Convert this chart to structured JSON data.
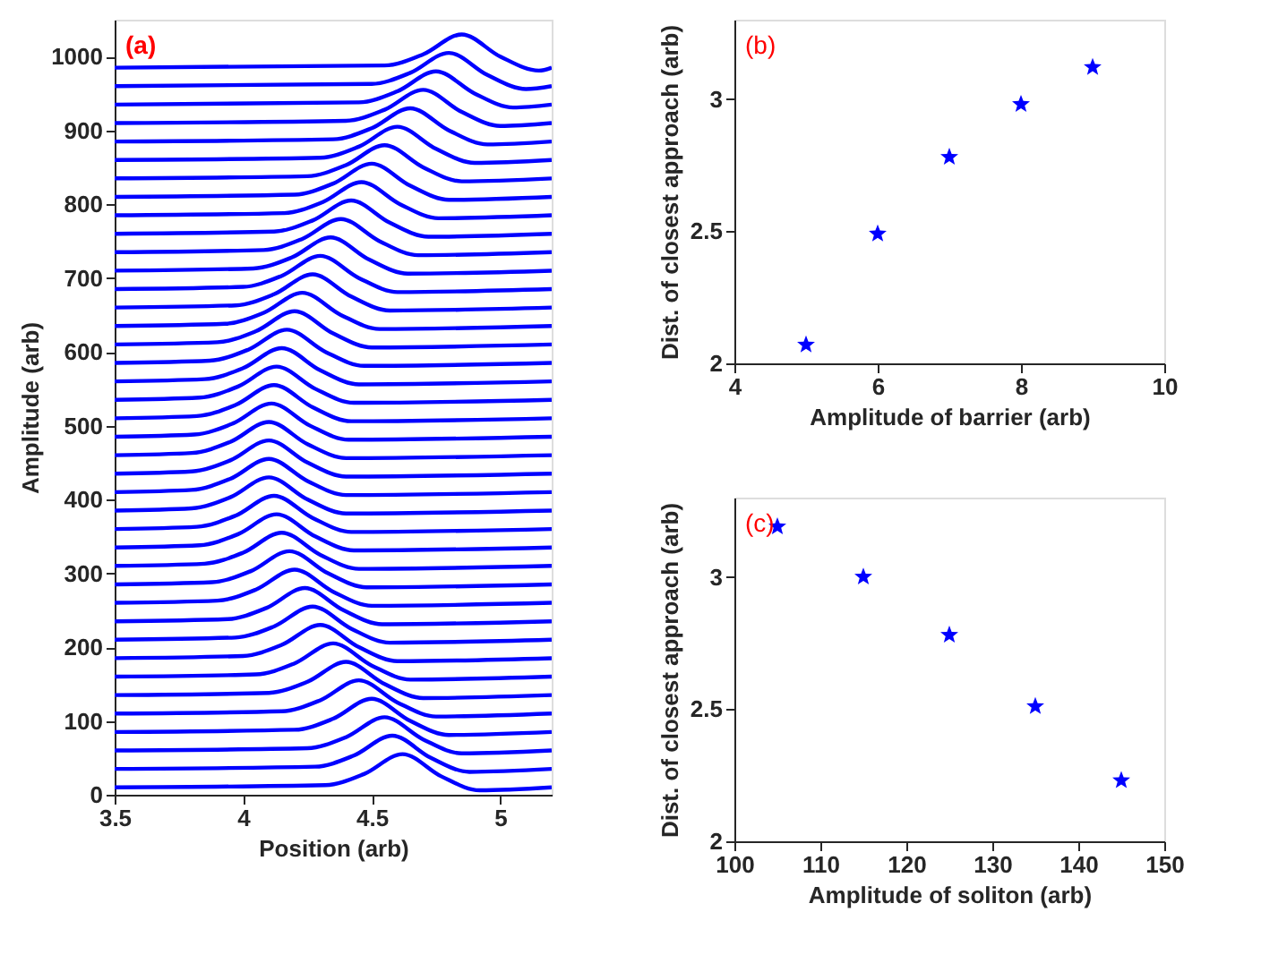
{
  "chart_data": [
    {
      "type": "line",
      "xlabel": "Position (arb)",
      "ylabel": "Amplitude (arb)",
      "annotations": [
        "(a)"
      ],
      "xlim": [
        3.5,
        5.2
      ],
      "xticks": [
        3.5,
        4,
        4.5,
        5
      ],
      "ylim": [
        0,
        1050
      ],
      "yticks": [
        0,
        100,
        200,
        300,
        400,
        500,
        600,
        700,
        800,
        900,
        1000
      ],
      "grid": false,
      "legend": false,
      "marker": "none",
      "line_style": "solid",
      "series": [
        {
          "color": "#0000ff",
          "x": [
            3.5,
            4.32,
            4.47,
            4.62,
            4.77,
            4.92,
            5.2
          ],
          "values": [
            10,
            13,
            28,
            55,
            25,
            6,
            10
          ]
        },
        {
          "color": "#0000ff",
          "x": [
            3.5,
            4.28,
            4.43,
            4.58,
            4.73,
            4.88,
            5.2
          ],
          "values": [
            35,
            38,
            53,
            80,
            50,
            31,
            35
          ]
        },
        {
          "color": "#0000ff",
          "x": [
            3.5,
            4.25,
            4.4,
            4.55,
            4.7,
            4.85,
            5.2
          ],
          "values": [
            60,
            63,
            78,
            105,
            75,
            56,
            60
          ]
        },
        {
          "color": "#0000ff",
          "x": [
            3.5,
            4.2,
            4.35,
            4.5,
            4.65,
            4.8,
            5.2
          ],
          "values": [
            85,
            88,
            103,
            130,
            100,
            81,
            85
          ]
        },
        {
          "color": "#0000ff",
          "x": [
            3.5,
            4.15,
            4.3,
            4.45,
            4.6,
            4.75,
            5.2
          ],
          "values": [
            110,
            113,
            128,
            155,
            125,
            106,
            110
          ]
        },
        {
          "color": "#0000ff",
          "x": [
            3.5,
            4.1,
            4.25,
            4.4,
            4.55,
            4.7,
            5.2
          ],
          "values": [
            135,
            138,
            153,
            180,
            150,
            131,
            135
          ]
        },
        {
          "color": "#0000ff",
          "x": [
            3.5,
            4.05,
            4.2,
            4.35,
            4.5,
            4.65,
            5.2
          ],
          "values": [
            160,
            163,
            178,
            205,
            175,
            156,
            160
          ]
        },
        {
          "color": "#0000ff",
          "x": [
            3.5,
            4.0,
            4.15,
            4.3,
            4.45,
            4.6,
            5.2
          ],
          "values": [
            185,
            188,
            203,
            230,
            200,
            181,
            185
          ]
        },
        {
          "color": "#0000ff",
          "x": [
            3.5,
            3.97,
            4.12,
            4.27,
            4.42,
            4.57,
            5.2
          ],
          "values": [
            210,
            213,
            228,
            255,
            225,
            206,
            210
          ]
        },
        {
          "color": "#0000ff",
          "x": [
            3.5,
            3.94,
            4.09,
            4.24,
            4.39,
            4.54,
            5.2
          ],
          "values": [
            235,
            238,
            253,
            280,
            250,
            231,
            235
          ]
        },
        {
          "color": "#0000ff",
          "x": [
            3.5,
            3.9,
            4.05,
            4.2,
            4.35,
            4.5,
            5.2
          ],
          "values": [
            260,
            263,
            278,
            305,
            275,
            256,
            260
          ]
        },
        {
          "color": "#0000ff",
          "x": [
            3.5,
            3.88,
            4.03,
            4.18,
            4.33,
            4.48,
            5.2
          ],
          "values": [
            285,
            288,
            303,
            330,
            300,
            281,
            285
          ]
        },
        {
          "color": "#0000ff",
          "x": [
            3.5,
            3.85,
            4.0,
            4.15,
            4.3,
            4.45,
            5.2
          ],
          "values": [
            310,
            313,
            328,
            355,
            325,
            306,
            310
          ]
        },
        {
          "color": "#0000ff",
          "x": [
            3.5,
            3.83,
            3.98,
            4.13,
            4.28,
            4.43,
            5.2
          ],
          "values": [
            335,
            338,
            353,
            380,
            350,
            331,
            335
          ]
        },
        {
          "color": "#0000ff",
          "x": [
            3.5,
            3.82,
            3.97,
            4.12,
            4.27,
            4.42,
            5.2
          ],
          "values": [
            360,
            363,
            378,
            405,
            375,
            356,
            360
          ]
        },
        {
          "color": "#0000ff",
          "x": [
            3.5,
            3.8,
            3.95,
            4.1,
            4.25,
            4.4,
            5.2
          ],
          "values": [
            385,
            388,
            403,
            430,
            400,
            381,
            385
          ]
        },
        {
          "color": "#0000ff",
          "x": [
            3.5,
            3.8,
            3.95,
            4.1,
            4.25,
            4.4,
            5.2
          ],
          "values": [
            410,
            413,
            428,
            455,
            425,
            406,
            410
          ]
        },
        {
          "color": "#0000ff",
          "x": [
            3.5,
            3.8,
            3.95,
            4.1,
            4.25,
            4.4,
            5.2
          ],
          "values": [
            435,
            438,
            453,
            480,
            450,
            431,
            435
          ]
        },
        {
          "color": "#0000ff",
          "x": [
            3.5,
            3.8,
            3.95,
            4.1,
            4.25,
            4.4,
            5.2
          ],
          "values": [
            460,
            463,
            478,
            505,
            475,
            456,
            460
          ]
        },
        {
          "color": "#0000ff",
          "x": [
            3.5,
            3.81,
            3.96,
            4.11,
            4.26,
            4.41,
            5.2
          ],
          "values": [
            485,
            488,
            503,
            530,
            500,
            481,
            485
          ]
        },
        {
          "color": "#0000ff",
          "x": [
            3.5,
            3.82,
            3.97,
            4.12,
            4.27,
            4.42,
            5.2
          ],
          "values": [
            510,
            513,
            528,
            555,
            525,
            506,
            510
          ]
        },
        {
          "color": "#0000ff",
          "x": [
            3.5,
            3.83,
            3.98,
            4.13,
            4.28,
            4.43,
            5.2
          ],
          "values": [
            535,
            538,
            553,
            580,
            550,
            531,
            535
          ]
        },
        {
          "color": "#0000ff",
          "x": [
            3.5,
            3.85,
            4.0,
            4.15,
            4.3,
            4.45,
            5.2
          ],
          "values": [
            560,
            563,
            578,
            605,
            575,
            556,
            560
          ]
        },
        {
          "color": "#0000ff",
          "x": [
            3.5,
            3.87,
            4.02,
            4.17,
            4.32,
            4.47,
            5.2
          ],
          "values": [
            585,
            588,
            603,
            630,
            600,
            581,
            585
          ]
        },
        {
          "color": "#0000ff",
          "x": [
            3.5,
            3.9,
            4.05,
            4.2,
            4.35,
            4.5,
            5.2
          ],
          "values": [
            610,
            613,
            628,
            655,
            625,
            606,
            610
          ]
        },
        {
          "color": "#0000ff",
          "x": [
            3.5,
            3.93,
            4.08,
            4.23,
            4.38,
            4.53,
            5.2
          ],
          "values": [
            635,
            638,
            653,
            680,
            650,
            631,
            635
          ]
        },
        {
          "color": "#0000ff",
          "x": [
            3.5,
            3.97,
            4.12,
            4.27,
            4.42,
            4.57,
            5.2
          ],
          "values": [
            660,
            663,
            678,
            705,
            675,
            656,
            660
          ]
        },
        {
          "color": "#0000ff",
          "x": [
            3.5,
            4.0,
            4.15,
            4.3,
            4.45,
            4.6,
            5.2
          ],
          "values": [
            685,
            688,
            703,
            730,
            700,
            681,
            685
          ]
        },
        {
          "color": "#0000ff",
          "x": [
            3.5,
            4.04,
            4.19,
            4.34,
            4.49,
            4.64,
            5.2
          ],
          "values": [
            710,
            713,
            728,
            755,
            725,
            706,
            710
          ]
        },
        {
          "color": "#0000ff",
          "x": [
            3.5,
            4.08,
            4.23,
            4.38,
            4.53,
            4.68,
            5.2
          ],
          "values": [
            735,
            738,
            753,
            780,
            750,
            731,
            735
          ]
        },
        {
          "color": "#0000ff",
          "x": [
            3.5,
            4.12,
            4.27,
            4.42,
            4.57,
            4.72,
            5.2
          ],
          "values": [
            760,
            763,
            778,
            805,
            775,
            756,
            760
          ]
        },
        {
          "color": "#0000ff",
          "x": [
            3.5,
            4.16,
            4.31,
            4.46,
            4.61,
            4.76,
            5.2
          ],
          "values": [
            785,
            788,
            803,
            830,
            800,
            781,
            785
          ]
        },
        {
          "color": "#0000ff",
          "x": [
            3.5,
            4.2,
            4.35,
            4.5,
            4.65,
            4.8,
            5.2
          ],
          "values": [
            810,
            813,
            828,
            855,
            825,
            806,
            810
          ]
        },
        {
          "color": "#0000ff",
          "x": [
            3.5,
            4.25,
            4.4,
            4.55,
            4.7,
            4.85,
            5.2
          ],
          "values": [
            835,
            838,
            853,
            880,
            850,
            831,
            835
          ]
        },
        {
          "color": "#0000ff",
          "x": [
            3.5,
            4.3,
            4.45,
            4.6,
            4.75,
            4.9,
            5.2
          ],
          "values": [
            860,
            863,
            878,
            905,
            875,
            856,
            860
          ]
        },
        {
          "color": "#0000ff",
          "x": [
            3.5,
            4.35,
            4.5,
            4.65,
            4.8,
            4.95,
            5.2
          ],
          "values": [
            885,
            888,
            903,
            930,
            900,
            881,
            885
          ]
        },
        {
          "color": "#0000ff",
          "x": [
            3.5,
            4.4,
            4.55,
            4.7,
            4.85,
            5.0,
            5.2
          ],
          "values": [
            910,
            913,
            928,
            955,
            925,
            906,
            910
          ]
        },
        {
          "color": "#0000ff",
          "x": [
            3.5,
            4.45,
            4.6,
            4.75,
            4.9,
            5.05,
            5.2
          ],
          "values": [
            935,
            938,
            953,
            980,
            950,
            931,
            935
          ]
        },
        {
          "color": "#0000ff",
          "x": [
            3.5,
            4.5,
            4.65,
            4.8,
            4.95,
            5.1,
            5.2
          ],
          "values": [
            960,
            963,
            978,
            1005,
            975,
            956,
            960
          ]
        },
        {
          "color": "#0000ff",
          "x": [
            3.5,
            4.55,
            4.7,
            4.85,
            5.0,
            5.15,
            5.2
          ],
          "values": [
            985,
            988,
            1003,
            1030,
            1000,
            981,
            985
          ]
        }
      ]
    },
    {
      "type": "scatter",
      "xlabel": "Amplitude of barrier (arb)",
      "ylabel": "Dist. of closest approach (arb)",
      "annotations": [
        "(b)"
      ],
      "xlim": [
        4,
        10
      ],
      "xticks": [
        4,
        6,
        8,
        10
      ],
      "ylim": [
        2,
        3.3
      ],
      "yticks": [
        2,
        2.5,
        3
      ],
      "grid": false,
      "legend": false,
      "marker": "star",
      "series": [
        {
          "color": "#0000ff",
          "x": [
            5,
            6,
            7,
            8,
            9
          ],
          "values": [
            2.07,
            2.49,
            2.78,
            2.98,
            3.12
          ]
        }
      ]
    },
    {
      "type": "scatter",
      "xlabel": "Amplitude of soliton (arb)",
      "ylabel": "Dist. of closest approach (arb)",
      "annotations": [
        "(c)"
      ],
      "xlim": [
        100,
        150
      ],
      "xticks": [
        100,
        110,
        120,
        130,
        140,
        150
      ],
      "ylim": [
        2,
        3.3
      ],
      "yticks": [
        2,
        2.5,
        3
      ],
      "grid": false,
      "legend": false,
      "marker": "star",
      "series": [
        {
          "color": "#0000ff",
          "x": [
            105,
            115,
            125,
            135,
            145
          ],
          "values": [
            3.19,
            3.0,
            2.78,
            2.51,
            2.23
          ]
        }
      ]
    }
  ]
}
